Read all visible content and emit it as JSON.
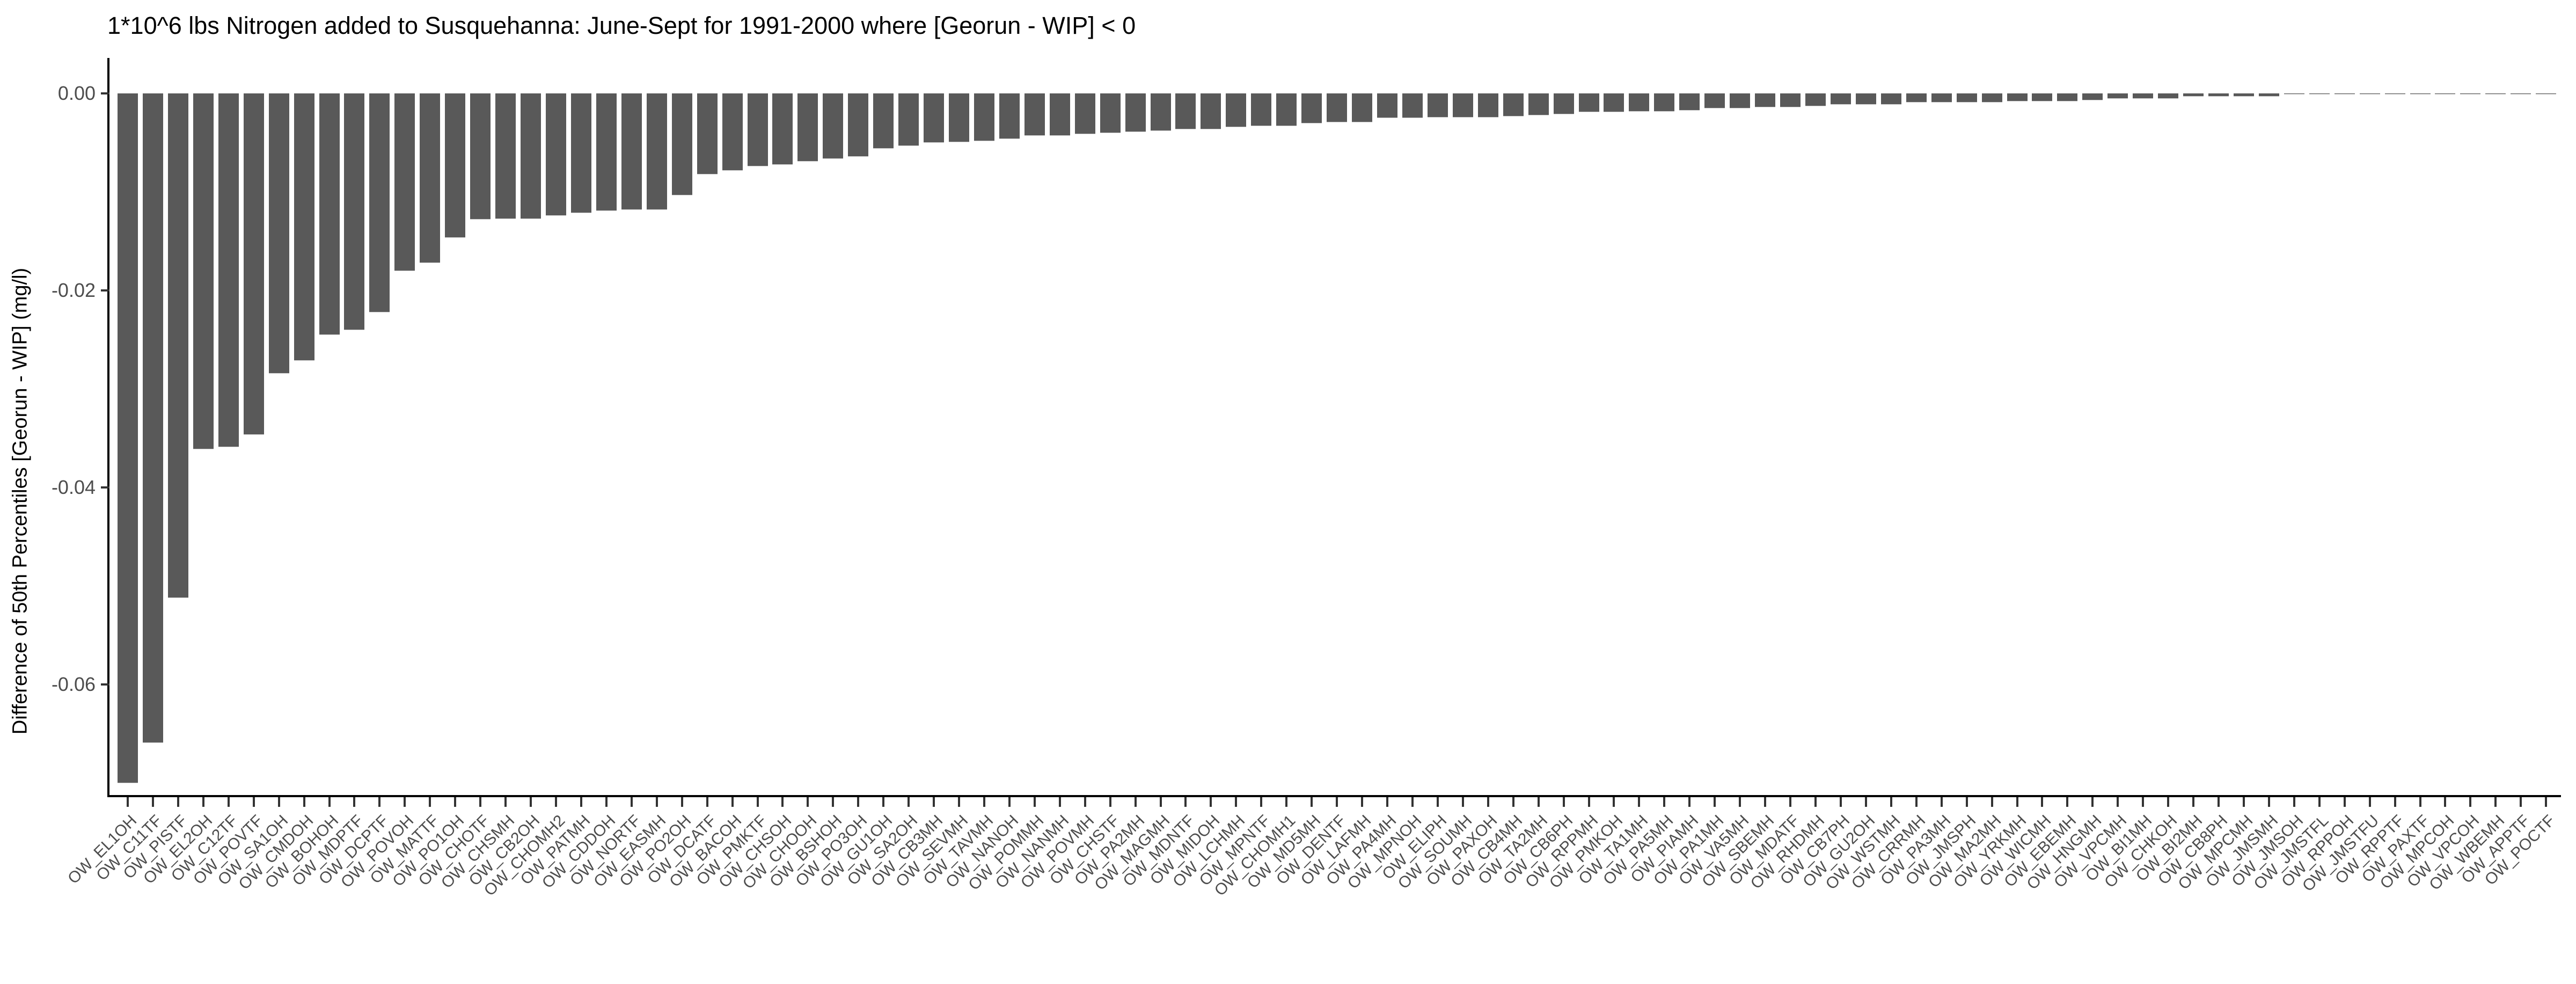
{
  "title": "1*10^6 lbs Nitrogen added to Susquehanna: June-Sept for 1991-2000 where [Georun - WIP] < 0",
  "chart_data": {
    "type": "bar",
    "title": "1*10^6 lbs Nitrogen added to Susquehanna: June-Sept for 1991-2000 where [Georun - WIP] < 0",
    "xlabel": "",
    "ylabel": "Difference of 50th Percentiles [Georun - WIP] (mg/l)",
    "ylim": [
      -0.0735,
      0.0035
    ],
    "grid": false,
    "legend": false,
    "bar_color": "#595959",
    "bar_edge_color": "#cfcfcf",
    "axis_color": "#000000",
    "tick_text_color": "#4d4d4d",
    "y_ticks": {
      "labels": [
        "0.00",
        "-0.02",
        "-0.04",
        "-0.06"
      ],
      "values": [
        0,
        -0.02,
        -0.04,
        -0.06
      ]
    },
    "categories": [
      "OW_EL1OH",
      "OW_C11TF",
      "OW_PISTF",
      "OW_EL2OH",
      "OW_C12TF",
      "OW_POVTF",
      "OW_SA1OH",
      "OW_CMDOH",
      "OW_BOHOH",
      "OW_MDPTF",
      "OW_DCPTF",
      "OW_POVOH",
      "OW_MATTF",
      "OW_PO1OH",
      "OW_CHOTF",
      "OW_CHSMH",
      "OW_CB2OH",
      "OW_CHOMH2",
      "OW_PATMH",
      "OW_CDDOH",
      "OW_NORTF",
      "OW_EASMH",
      "OW_PO2OH",
      "OW_DCATF",
      "OW_BACOH",
      "OW_PMKTF",
      "OW_CHSOH",
      "OW_CHOOH",
      "OW_BSHOH",
      "OW_PO3OH",
      "OW_GU1OH",
      "OW_SA2OH",
      "OW_CB3MH",
      "OW_SEVMH",
      "OW_TAVMH",
      "OW_NANOH",
      "OW_POMMH",
      "OW_NANMH",
      "OW_POVMH",
      "OW_CHSTF",
      "OW_PA2MH",
      "OW_MAGMH",
      "OW_MDNTF",
      "OW_MIDOH",
      "OW_LCHMH",
      "OW_MPNTF",
      "OW_CHOMH1",
      "OW_MD5MH",
      "OW_DENTF",
      "OW_LAFMH",
      "OW_PA4MH",
      "OW_MPNOH",
      "OW_ELIPH",
      "OW_SOUMH",
      "OW_PAXOH",
      "OW_CB4MH",
      "OW_TA2MH",
      "OW_CB6PH",
      "OW_RPPMH",
      "OW_PMKOH",
      "OW_TA1MH",
      "OW_PA5MH",
      "OW_PIAMH",
      "OW_PA1MH",
      "OW_VA5MH",
      "OW_SBEMH",
      "OW_MDATF",
      "OW_RHDMH",
      "OW_CB7PH",
      "OW_GU2OH",
      "OW_WSTMH",
      "OW_CRRMH",
      "OW_PA3MH",
      "OW_JMSPH",
      "OW_MA2MH",
      "OW_YRKMH",
      "OW_WICMH",
      "OW_EBEMH",
      "OW_HNGMH",
      "OW_VPCMH",
      "OW_BI1MH",
      "OW_CHKOH",
      "OW_BI2MH",
      "OW_CB8PH",
      "OW_MPCMH",
      "OW_JMSMH",
      "OW_JMSOH",
      "OW_JMSTFL",
      "OW_RPPOH",
      "OW_JMSTFU",
      "OW_RPPTF",
      "OW_PAXTF",
      "OW_MPCOH",
      "OW_VPCOH",
      "OW_WBEMH",
      "OW_APPTF",
      "OW_POCTF"
    ],
    "values": [
      -0.07,
      -0.0659,
      -0.0512,
      -0.0361,
      -0.0359,
      -0.0346,
      -0.0284,
      -0.0271,
      -0.0245,
      -0.024,
      -0.0222,
      -0.018,
      -0.0172,
      -0.0146,
      -0.0128,
      -0.0127,
      -0.0127,
      -0.0124,
      -0.0121,
      -0.0119,
      -0.0118,
      -0.0118,
      -0.0103,
      -0.0082,
      -0.0078,
      -0.0074,
      -0.0072,
      -0.0069,
      -0.0066,
      -0.0064,
      -0.0056,
      -0.0053,
      -0.005,
      -0.0049,
      -0.0048,
      -0.0046,
      -0.0043,
      -0.0043,
      -0.0041,
      -0.004,
      -0.0039,
      -0.0038,
      -0.0036,
      -0.0036,
      -0.0034,
      -0.0033,
      -0.0033,
      -0.003,
      -0.0029,
      -0.0029,
      -0.0025,
      -0.0025,
      -0.0024,
      -0.0024,
      -0.0024,
      -0.0023,
      -0.0022,
      -0.0021,
      -0.0019,
      -0.0019,
      -0.0018,
      -0.0018,
      -0.0017,
      -0.0015,
      -0.0015,
      -0.0014,
      -0.0014,
      -0.0013,
      -0.0011,
      -0.0011,
      -0.0011,
      -0.0009,
      -0.0009,
      -0.0009,
      -0.0009,
      -0.0008,
      -0.0008,
      -0.0008,
      -0.0007,
      -0.0005,
      -0.0005,
      -0.0005,
      -0.0003,
      -0.0003,
      -0.0003,
      -0.0003,
      -0.0001,
      -0.0001,
      -8e-05,
      -6e-05,
      -5e-05,
      -4e-05,
      -3e-05,
      -2e-05,
      -2e-05,
      -1e-05,
      -1e-05
    ]
  }
}
